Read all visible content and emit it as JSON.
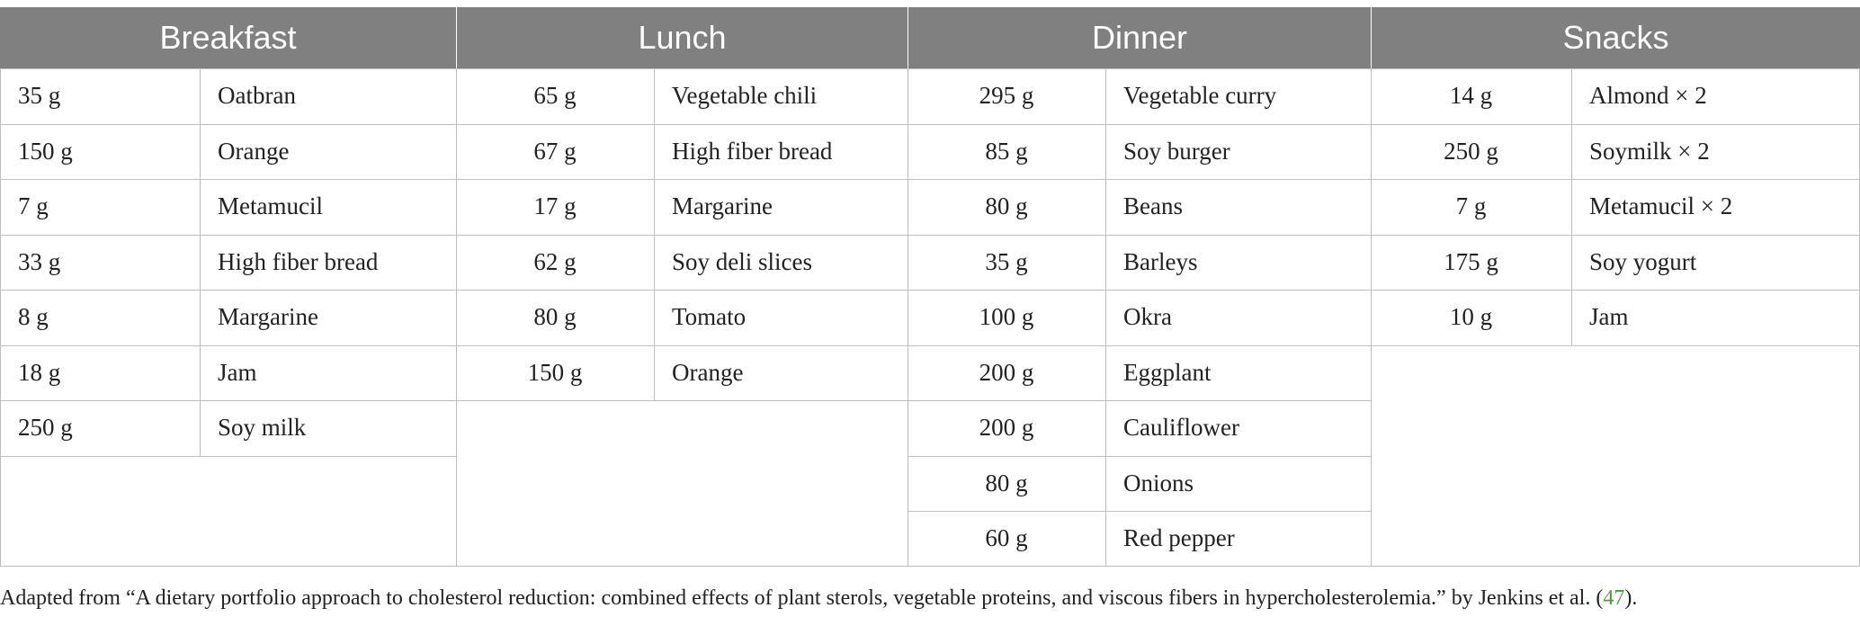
{
  "table": {
    "columns": [
      {
        "key": "breakfast",
        "title": "Breakfast",
        "rows": [
          {
            "qty": "35 g",
            "food": "Oatbran"
          },
          {
            "qty": "150 g",
            "food": "Orange"
          },
          {
            "qty": "7 g",
            "food": "Metamucil"
          },
          {
            "qty": "33 g",
            "food": "High fiber bread"
          },
          {
            "qty": "8 g",
            "food": "Margarine"
          },
          {
            "qty": "18 g",
            "food": "Jam"
          },
          {
            "qty": "250 g",
            "food": "Soy milk"
          }
        ]
      },
      {
        "key": "lunch",
        "title": "Lunch",
        "rows": [
          {
            "qty": "65 g",
            "food": "Vegetable chili"
          },
          {
            "qty": "67 g",
            "food": "High fiber bread"
          },
          {
            "qty": "17 g",
            "food": "Margarine"
          },
          {
            "qty": "62 g",
            "food": "Soy deli slices"
          },
          {
            "qty": "80 g",
            "food": "Tomato"
          },
          {
            "qty": "150 g",
            "food": "Orange"
          }
        ]
      },
      {
        "key": "dinner",
        "title": "Dinner",
        "rows": [
          {
            "qty": "295 g",
            "food": "Vegetable curry"
          },
          {
            "qty": "85 g",
            "food": "Soy burger"
          },
          {
            "qty": "80 g",
            "food": "Beans"
          },
          {
            "qty": "35 g",
            "food": "Barleys"
          },
          {
            "qty": "100 g",
            "food": "Okra"
          },
          {
            "qty": "200 g",
            "food": "Eggplant"
          },
          {
            "qty": "200 g",
            "food": "Cauliflower"
          },
          {
            "qty": "80 g",
            "food": "Onions"
          },
          {
            "qty": "60 g",
            "food": "Red pepper"
          }
        ]
      },
      {
        "key": "snacks",
        "title": "Snacks",
        "rows": [
          {
            "qty": "14 g",
            "food": "Almond × 2"
          },
          {
            "qty": "250 g",
            "food": "Soymilk × 2"
          },
          {
            "qty": "7 g",
            "food": "Metamucil × 2"
          },
          {
            "qty": "175 g",
            "food": "Soy yogurt"
          },
          {
            "qty": "10 g",
            "food": "Jam"
          }
        ]
      }
    ]
  },
  "footnote": {
    "text": "Adapted from “A dietary portfolio approach to cholesterol reduction: combined effects of plant sterols, vegetable proteins, and viscous fibers in hypercholesterolemia.” by Jenkins et al. (",
    "ref": "47",
    "tail": ")."
  },
  "colors": {
    "header_bg": "#808080",
    "header_text": "#ffffff",
    "grid": "#bdbdbd",
    "ref_link": "#4a9e3a"
  }
}
